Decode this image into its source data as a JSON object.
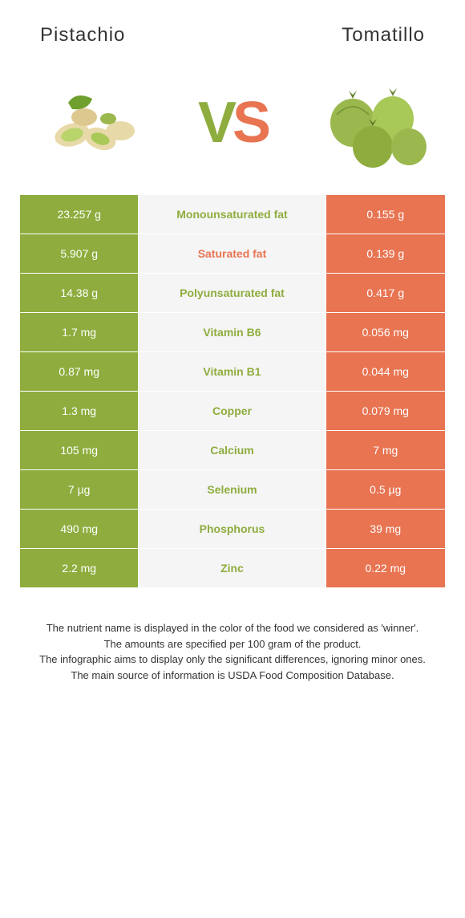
{
  "header": {
    "left_title": "Pistachio",
    "right_title": "Tomatillo"
  },
  "vs": {
    "v": "V",
    "s": "S"
  },
  "colors": {
    "left_bg": "#8ead3e",
    "right_bg": "#e87452",
    "mid_bg": "#f5f5f5",
    "left_text": "#8ead3e",
    "right_text": "#e87452",
    "cell_text": "#ffffff",
    "border": "#ffffff"
  },
  "layout": {
    "left_width_pct": 28,
    "mid_width_pct": 44,
    "right_width_pct": 28,
    "row_font_size": 14,
    "header_font_size": 24,
    "vs_font_size": 72
  },
  "rows": [
    {
      "left": "23.257 g",
      "label": "Monounsaturated fat",
      "right": "0.155 g",
      "winner": "left"
    },
    {
      "left": "5.907 g",
      "label": "Saturated fat",
      "right": "0.139 g",
      "winner": "right"
    },
    {
      "left": "14.38 g",
      "label": "Polyunsaturated fat",
      "right": "0.417 g",
      "winner": "left"
    },
    {
      "left": "1.7 mg",
      "label": "Vitamin B6",
      "right": "0.056 mg",
      "winner": "left"
    },
    {
      "left": "0.87 mg",
      "label": "Vitamin B1",
      "right": "0.044 mg",
      "winner": "left"
    },
    {
      "left": "1.3 mg",
      "label": "Copper",
      "right": "0.079 mg",
      "winner": "left"
    },
    {
      "left": "105 mg",
      "label": "Calcium",
      "right": "7 mg",
      "winner": "left"
    },
    {
      "left": "7 µg",
      "label": "Selenium",
      "right": "0.5 µg",
      "winner": "left"
    },
    {
      "left": "490 mg",
      "label": "Phosphorus",
      "right": "39 mg",
      "winner": "left"
    },
    {
      "left": "2.2 mg",
      "label": "Zinc",
      "right": "0.22 mg",
      "winner": "left"
    }
  ],
  "footer": {
    "line1": "The nutrient name is displayed in the color of the food we considered as 'winner'.",
    "line2": "The amounts are specified per 100 gram of the product.",
    "line3": "The infographic aims to display only the significant differences, ignoring minor ones.",
    "line4": "The main source of information is USDA Food Composition Database."
  }
}
